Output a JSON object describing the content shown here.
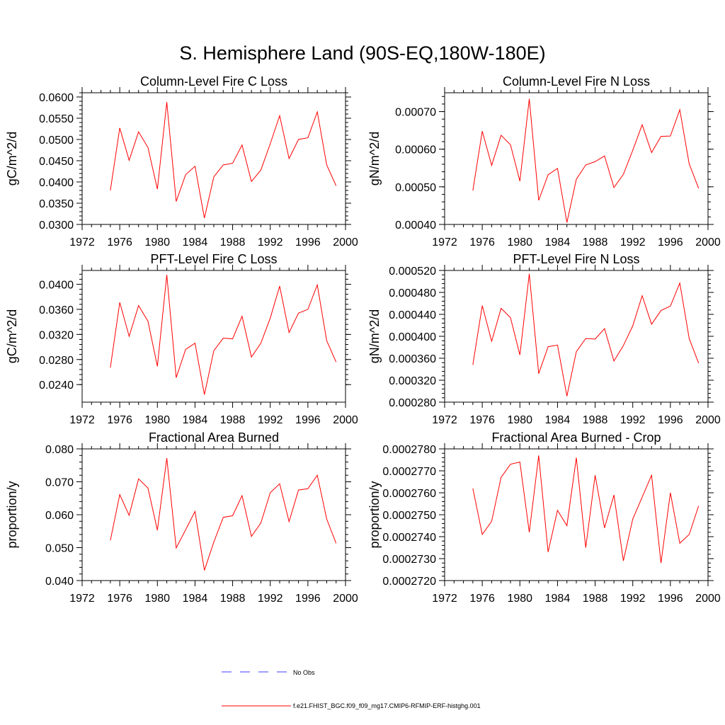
{
  "figure_title": "S. Hemisphere Land (90S-EQ,180W-180E)",
  "colors": {
    "model_line": "#ff0000",
    "obs_line": "#3c3cff",
    "frame": "#000000"
  },
  "legend": {
    "obs_label": "No Obs",
    "model_label": "f.e21.FHIST_BGC.f09_f09_mg17.CMIP6-RFMIP-ERF-histghg.001"
  },
  "chart_data": [
    {
      "type": "line",
      "title": "Column-Level Fire C Loss",
      "xlabel": "",
      "ylabel": "gC/m^2/d",
      "xlim": [
        1972,
        2000
      ],
      "ylim": [
        0.03,
        0.061
      ],
      "xticks": [
        1972,
        1976,
        1980,
        1984,
        1988,
        1992,
        1996,
        2000
      ],
      "xtick_labels": [
        "1972",
        "1976",
        "1980",
        "1984",
        "1988",
        "1992",
        "1996",
        "2000"
      ],
      "yticks": [
        0.03,
        0.035,
        0.04,
        0.045,
        0.05,
        0.055,
        0.06
      ],
      "ytick_labels": [
        "0.0300",
        "0.0350",
        "0.0400",
        "0.0450",
        "0.0500",
        "0.0550",
        "0.0600"
      ],
      "x": [
        1975,
        1976,
        1977,
        1978,
        1979,
        1980,
        1981,
        1982,
        1983,
        1984,
        1985,
        1986,
        1987,
        1988,
        1989,
        1990,
        1991,
        1992,
        1993,
        1994,
        1995,
        1996,
        1997,
        1998,
        1999
      ],
      "series": [
        {
          "name": "f.e21.FHIST_BGC.f09_f09_mg17.CMIP6-RFMIP-ERF-histghg.001",
          "values": [
            0.038,
            0.0527,
            0.0451,
            0.0518,
            0.0481,
            0.0383,
            0.0588,
            0.0354,
            0.0417,
            0.0437,
            0.0315,
            0.0412,
            0.044,
            0.0444,
            0.0487,
            0.0401,
            0.0428,
            0.049,
            0.0556,
            0.0455,
            0.05,
            0.0504,
            0.0565,
            0.044,
            0.0391
          ]
        }
      ]
    },
    {
      "type": "line",
      "title": "Column-Level Fire N Loss",
      "xlabel": "",
      "ylabel": "gN/m^2/d",
      "xlim": [
        1972,
        2000
      ],
      "ylim": [
        0.0004,
        0.00075
      ],
      "xticks": [
        1972,
        1976,
        1980,
        1984,
        1988,
        1992,
        1996,
        2000
      ],
      "xtick_labels": [
        "1972",
        "1976",
        "1980",
        "1984",
        "1988",
        "1992",
        "1996",
        "2000"
      ],
      "yticks": [
        0.0004,
        0.0005,
        0.0006,
        0.0007
      ],
      "ytick_labels": [
        "0.00040",
        "0.00050",
        "0.00060",
        "0.00070"
      ],
      "x": [
        1975,
        1976,
        1977,
        1978,
        1979,
        1980,
        1981,
        1982,
        1983,
        1984,
        1985,
        1986,
        1987,
        1988,
        1989,
        1990,
        1991,
        1992,
        1993,
        1994,
        1995,
        1996,
        1997,
        1998,
        1999
      ],
      "series": [
        {
          "name": "f.e21.FHIST_BGC.f09_f09_mg17.CMIP6-RFMIP-ERF-histghg.001",
          "values": [
            0.00049,
            0.000648,
            0.000557,
            0.000637,
            0.000612,
            0.000515,
            0.000734,
            0.000464,
            0.000532,
            0.000549,
            0.000405,
            0.00052,
            0.000558,
            0.000567,
            0.000582,
            0.000498,
            0.000533,
            0.000597,
            0.000665,
            0.000591,
            0.000634,
            0.000635,
            0.000705,
            0.000561,
            0.000496
          ]
        }
      ]
    },
    {
      "type": "line",
      "title": "PFT-Level Fire C Loss",
      "xlabel": "",
      "ylabel": "gC/m^2/d",
      "xlim": [
        1972,
        2000
      ],
      "ylim": [
        0.0212,
        0.0422
      ],
      "xticks": [
        1972,
        1976,
        1980,
        1984,
        1988,
        1992,
        1996,
        2000
      ],
      "xtick_labels": [
        "1972",
        "1976",
        "1980",
        "1984",
        "1988",
        "1992",
        "1996",
        "2000"
      ],
      "yticks": [
        0.024,
        0.028,
        0.032,
        0.036,
        0.04
      ],
      "ytick_labels": [
        "0.0240",
        "0.0280",
        "0.0320",
        "0.0360",
        "0.0400"
      ],
      "x": [
        1975,
        1976,
        1977,
        1978,
        1979,
        1980,
        1981,
        1982,
        1983,
        1984,
        1985,
        1986,
        1987,
        1988,
        1989,
        1990,
        1991,
        1992,
        1993,
        1994,
        1995,
        1996,
        1997,
        1998,
        1999
      ],
      "series": [
        {
          "name": "f.e21.FHIST_BGC.f09_f09_mg17.CMIP6-RFMIP-ERF-histghg.001",
          "values": [
            0.0267,
            0.0371,
            0.0317,
            0.0366,
            0.0341,
            0.0269,
            0.0415,
            0.0251,
            0.0296,
            0.0306,
            0.0224,
            0.0294,
            0.0314,
            0.0313,
            0.0349,
            0.0284,
            0.0306,
            0.0346,
            0.0397,
            0.0323,
            0.0354,
            0.036,
            0.0399,
            0.031,
            0.0276
          ]
        }
      ]
    },
    {
      "type": "line",
      "title": "PFT-Level Fire N Loss",
      "xlabel": "",
      "ylabel": "gN/m^2/d",
      "xlim": [
        1972,
        2000
      ],
      "ylim": [
        0.00028,
        0.00052
      ],
      "xticks": [
        1972,
        1976,
        1980,
        1984,
        1988,
        1992,
        1996,
        2000
      ],
      "xtick_labels": [
        "1972",
        "1976",
        "1980",
        "1984",
        "1988",
        "1992",
        "1996",
        "2000"
      ],
      "yticks": [
        0.00028,
        0.00032,
        0.00036,
        0.0004,
        0.00044,
        0.00048,
        0.00052
      ],
      "ytick_labels": [
        "0.000280",
        "0.000320",
        "0.000360",
        "0.000400",
        "0.000440",
        "0.000480",
        "0.000520"
      ],
      "x": [
        1975,
        1976,
        1977,
        1978,
        1979,
        1980,
        1981,
        1982,
        1983,
        1984,
        1985,
        1986,
        1987,
        1988,
        1989,
        1990,
        1991,
        1992,
        1993,
        1994,
        1995,
        1996,
        1997,
        1998,
        1999
      ],
      "series": [
        {
          "name": "f.e21.FHIST_BGC.f09_f09_mg17.CMIP6-RFMIP-ERF-histghg.001",
          "values": [
            0.000348,
            0.000456,
            0.000391,
            0.000451,
            0.000434,
            0.000366,
            0.000514,
            0.000332,
            0.000381,
            0.000384,
            0.000291,
            0.000372,
            0.000396,
            0.000395,
            0.000414,
            0.000355,
            0.000383,
            0.000419,
            0.000474,
            0.000422,
            0.000447,
            0.000455,
            0.000497,
            0.000396,
            0.000351
          ]
        }
      ]
    },
    {
      "type": "line",
      "title": "Fractional Area Burned",
      "xlabel": "",
      "ylabel": "proportion/y",
      "xlim": [
        1972,
        2000
      ],
      "ylim": [
        0.04,
        0.08
      ],
      "xticks": [
        1972,
        1976,
        1980,
        1984,
        1988,
        1992,
        1996,
        2000
      ],
      "xtick_labels": [
        "1972",
        "1976",
        "1980",
        "1984",
        "1988",
        "1992",
        "1996",
        "2000"
      ],
      "yticks": [
        0.04,
        0.05,
        0.06,
        0.07,
        0.08
      ],
      "ytick_labels": [
        "0.040",
        "0.050",
        "0.060",
        "0.070",
        "0.080"
      ],
      "x": [
        1975,
        1976,
        1977,
        1978,
        1979,
        1980,
        1981,
        1982,
        1983,
        1984,
        1985,
        1986,
        1987,
        1988,
        1989,
        1990,
        1991,
        1992,
        1993,
        1994,
        1995,
        1996,
        1997,
        1998,
        1999
      ],
      "series": [
        {
          "name": "f.e21.FHIST_BGC.f09_f09_mg17.CMIP6-RFMIP-ERF-histghg.001",
          "values": [
            0.0522,
            0.0661,
            0.0598,
            0.0709,
            0.0681,
            0.0553,
            0.0772,
            0.0499,
            0.0554,
            0.061,
            0.0431,
            0.0517,
            0.0592,
            0.0597,
            0.0658,
            0.0534,
            0.0575,
            0.0667,
            0.0694,
            0.0579,
            0.0675,
            0.0679,
            0.072,
            0.0587,
            0.0513
          ]
        }
      ]
    },
    {
      "type": "line",
      "title": "Fractional Area Burned - Crop",
      "xlabel": "",
      "ylabel": "proportion/y",
      "xlim": [
        1972,
        2000
      ],
      "ylim": [
        0.000272,
        0.000278
      ],
      "xticks": [
        1972,
        1976,
        1980,
        1984,
        1988,
        1992,
        1996,
        2000
      ],
      "xtick_labels": [
        "1972",
        "1976",
        "1980",
        "1984",
        "1988",
        "1992",
        "1996",
        "2000"
      ],
      "yticks": [
        0.000272,
        0.000273,
        0.000274,
        0.000275,
        0.000276,
        0.000277,
        0.000278
      ],
      "ytick_labels": [
        "0.0002720",
        "0.0002730",
        "0.0002740",
        "0.0002750",
        "0.0002760",
        "0.0002770",
        "0.0002780"
      ],
      "x": [
        1975,
        1976,
        1977,
        1978,
        1979,
        1980,
        1981,
        1982,
        1983,
        1984,
        1985,
        1986,
        1987,
        1988,
        1989,
        1990,
        1991,
        1992,
        1993,
        1994,
        1995,
        1996,
        1997,
        1998,
        1999
      ],
      "series": [
        {
          "name": "f.e21.FHIST_BGC.f09_f09_mg17.CMIP6-RFMIP-ERF-histghg.001",
          "values": [
            0.0002762,
            0.0002741,
            0.0002747,
            0.0002767,
            0.0002773,
            0.0002774,
            0.0002742,
            0.0002777,
            0.0002733,
            0.0002752,
            0.0002745,
            0.0002776,
            0.0002735,
            0.0002768,
            0.0002744,
            0.0002759,
            0.0002729,
            0.0002748,
            0.0002758,
            0.0002768,
            0.0002728,
            0.000276,
            0.0002737,
            0.0002741,
            0.0002754
          ]
        }
      ]
    }
  ]
}
